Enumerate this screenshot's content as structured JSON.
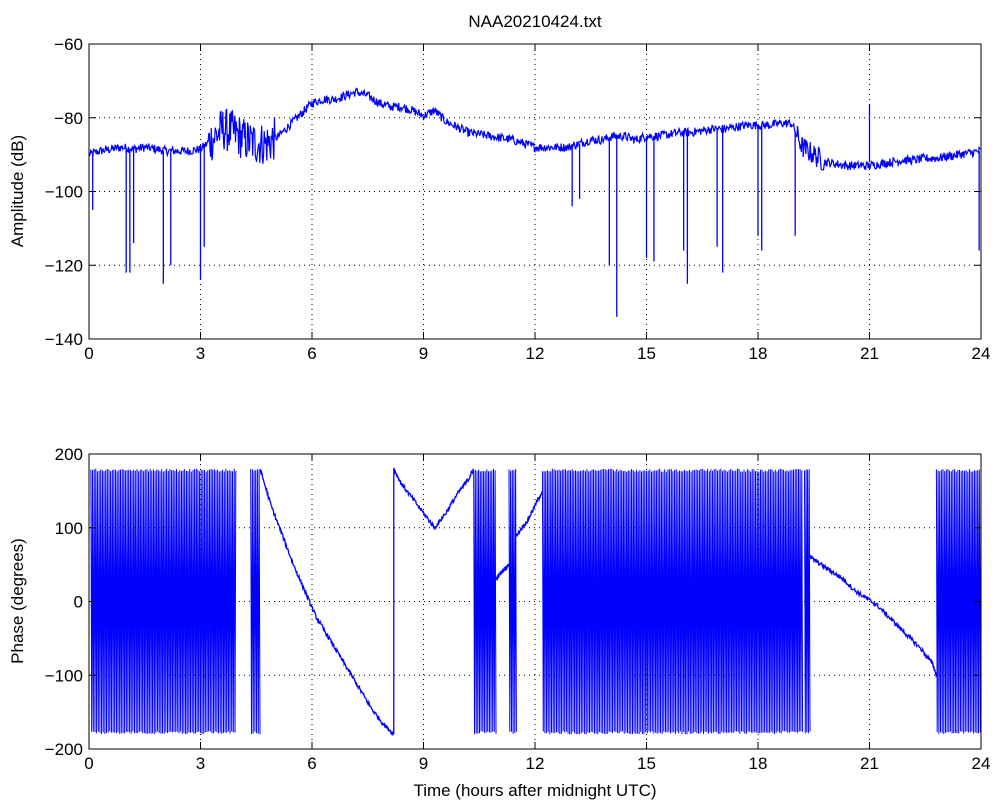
{
  "chart_data": [
    {
      "type": "line",
      "title": "NAA20210424.txt",
      "xlabel": "",
      "ylabel": "Amplitude (dB)",
      "xlim": [
        0,
        24
      ],
      "ylim": [
        -140,
        -60
      ],
      "x_ticks": [
        0,
        3,
        6,
        9,
        12,
        15,
        18,
        21,
        24
      ],
      "x_tick_labels": [
        "0",
        "3",
        "6",
        "9",
        "12",
        "15",
        "18",
        "21",
        "24"
      ],
      "y_ticks": [
        -140,
        -120,
        -100,
        -80,
        -60
      ],
      "y_tick_labels": [
        "−140",
        "−120",
        "−100",
        "−80",
        "−60"
      ],
      "grid": true,
      "line_color": "#0000ff",
      "series": [
        {
          "x": [
            0,
            0.3,
            0.6,
            0.9,
            1.2,
            1.5,
            1.8,
            2.1,
            2.4,
            2.7,
            3.0,
            3.3,
            3.6,
            3.9,
            4.2,
            4.5,
            4.8,
            5.1,
            5.4,
            5.7,
            6.0,
            6.3,
            6.6,
            6.9,
            7.2,
            7.5,
            7.8,
            8.1,
            8.4,
            8.7,
            9.0,
            9.3,
            9.6,
            9.9,
            10.2,
            10.5,
            10.8,
            11.1,
            11.4,
            11.7,
            12.0,
            12.3,
            12.6,
            12.9,
            13.2,
            13.5,
            13.8,
            14.1,
            14.4,
            14.7,
            15.0,
            15.3,
            15.6,
            15.9,
            16.2,
            16.5,
            16.8,
            17.1,
            17.4,
            17.7,
            18.0,
            18.3,
            18.6,
            18.9,
            19.2,
            19.5,
            19.8,
            20.1,
            20.4,
            20.7,
            21.0,
            21.3,
            21.6,
            21.9,
            22.2,
            22.5,
            22.8,
            23.1,
            23.4,
            23.7,
            24.0
          ],
          "y": [
            -90,
            -89,
            -88.5,
            -88,
            -88.5,
            -88,
            -88.5,
            -89,
            -89,
            -89,
            -88.5,
            -86,
            -83,
            -84,
            -86,
            -87,
            -87,
            -85,
            -82,
            -79,
            -76,
            -75,
            -75,
            -74,
            -73,
            -74,
            -76,
            -77,
            -77,
            -78,
            -79.5,
            -78,
            -81,
            -82.5,
            -84,
            -84.5,
            -85,
            -85.5,
            -86,
            -87,
            -88,
            -88,
            -88,
            -88,
            -87,
            -86,
            -86,
            -85,
            -85,
            -86,
            -85,
            -85,
            -84.5,
            -84,
            -84,
            -83.5,
            -83,
            -83,
            -82.5,
            -82,
            -82,
            -82,
            -81.5,
            -81.5,
            -88,
            -90,
            -92,
            -92.5,
            -93,
            -93,
            -93,
            -92.5,
            -92,
            -91.5,
            -91.5,
            -91,
            -91,
            -90.5,
            -90,
            -89.5,
            -89
          ]
        }
      ],
      "dips": [
        {
          "x": 0.1,
          "y": -105
        },
        {
          "x": 1.0,
          "y": -122
        },
        {
          "x": 1.1,
          "y": -122
        },
        {
          "x": 1.2,
          "y": -114
        },
        {
          "x": 2.0,
          "y": -125
        },
        {
          "x": 2.2,
          "y": -120
        },
        {
          "x": 3.0,
          "y": -124
        },
        {
          "x": 3.1,
          "y": -115
        },
        {
          "x": 13.0,
          "y": -104
        },
        {
          "x": 13.2,
          "y": -102
        },
        {
          "x": 14.0,
          "y": -120
        },
        {
          "x": 14.2,
          "y": -134
        },
        {
          "x": 15.0,
          "y": -118
        },
        {
          "x": 15.2,
          "y": -119
        },
        {
          "x": 16.0,
          "y": -116
        },
        {
          "x": 16.1,
          "y": -125
        },
        {
          "x": 16.9,
          "y": -115
        },
        {
          "x": 17.05,
          "y": -122
        },
        {
          "x": 18.0,
          "y": -112
        },
        {
          "x": 18.1,
          "y": -116
        },
        {
          "x": 19.0,
          "y": -112
        },
        {
          "x": 23.95,
          "y": -116
        }
      ],
      "spikes": [
        {
          "x": 21.0,
          "y": -76.5
        }
      ]
    },
    {
      "type": "line",
      "title": "",
      "xlabel": "Time (hours after midnight UTC)",
      "ylabel": "Phase (degrees)",
      "xlim": [
        0,
        24
      ],
      "ylim": [
        -200,
        200
      ],
      "x_ticks": [
        0,
        3,
        6,
        9,
        12,
        15,
        18,
        21,
        24
      ],
      "x_tick_labels": [
        "0",
        "3",
        "6",
        "9",
        "12",
        "15",
        "18",
        "21",
        "24"
      ],
      "y_ticks": [
        -200,
        -100,
        0,
        100,
        200
      ],
      "y_tick_labels": [
        "−200",
        "−100",
        "0",
        "100",
        "200"
      ],
      "grid": true,
      "line_color": "#0000ff",
      "wrapping_intervals": [
        [
          0.05,
          3.95
        ],
        [
          4.35,
          4.6
        ],
        [
          10.35,
          10.95
        ],
        [
          11.3,
          11.5
        ],
        [
          12.2,
          19.2
        ],
        [
          19.25,
          19.4
        ],
        [
          22.8,
          24.0
        ]
      ],
      "wrap_limits": [
        -180,
        180
      ],
      "series": [
        {
          "x": [
            4.6,
            4.9,
            5.2,
            5.5,
            5.8,
            6.1,
            6.4,
            6.7,
            7.0,
            7.3,
            7.6,
            7.9,
            8.2
          ],
          "y": [
            180,
            130,
            90,
            50,
            15,
            -20,
            -45,
            -70,
            -95,
            -120,
            -145,
            -165,
            -180
          ]
        },
        {
          "x": [
            8.2,
            8.4,
            8.7,
            9.0,
            9.3,
            9.6,
            9.9,
            10.2,
            10.35
          ],
          "y": [
            180,
            160,
            140,
            120,
            100,
            120,
            145,
            165,
            180
          ]
        },
        {
          "x": [
            10.95,
            11.1,
            11.3
          ],
          "y": [
            30,
            40,
            50
          ]
        },
        {
          "x": [
            11.5,
            11.8,
            12.0,
            12.2
          ],
          "y": [
            90,
            110,
            130,
            150
          ]
        },
        {
          "x": [
            19.4,
            19.7,
            20.0,
            20.3,
            20.6,
            20.9,
            21.2,
            21.5,
            21.8,
            22.1,
            22.4,
            22.7,
            22.8
          ],
          "y": [
            60,
            50,
            40,
            30,
            15,
            5,
            -5,
            -20,
            -35,
            -50,
            -65,
            -85,
            -100
          ]
        }
      ]
    }
  ]
}
